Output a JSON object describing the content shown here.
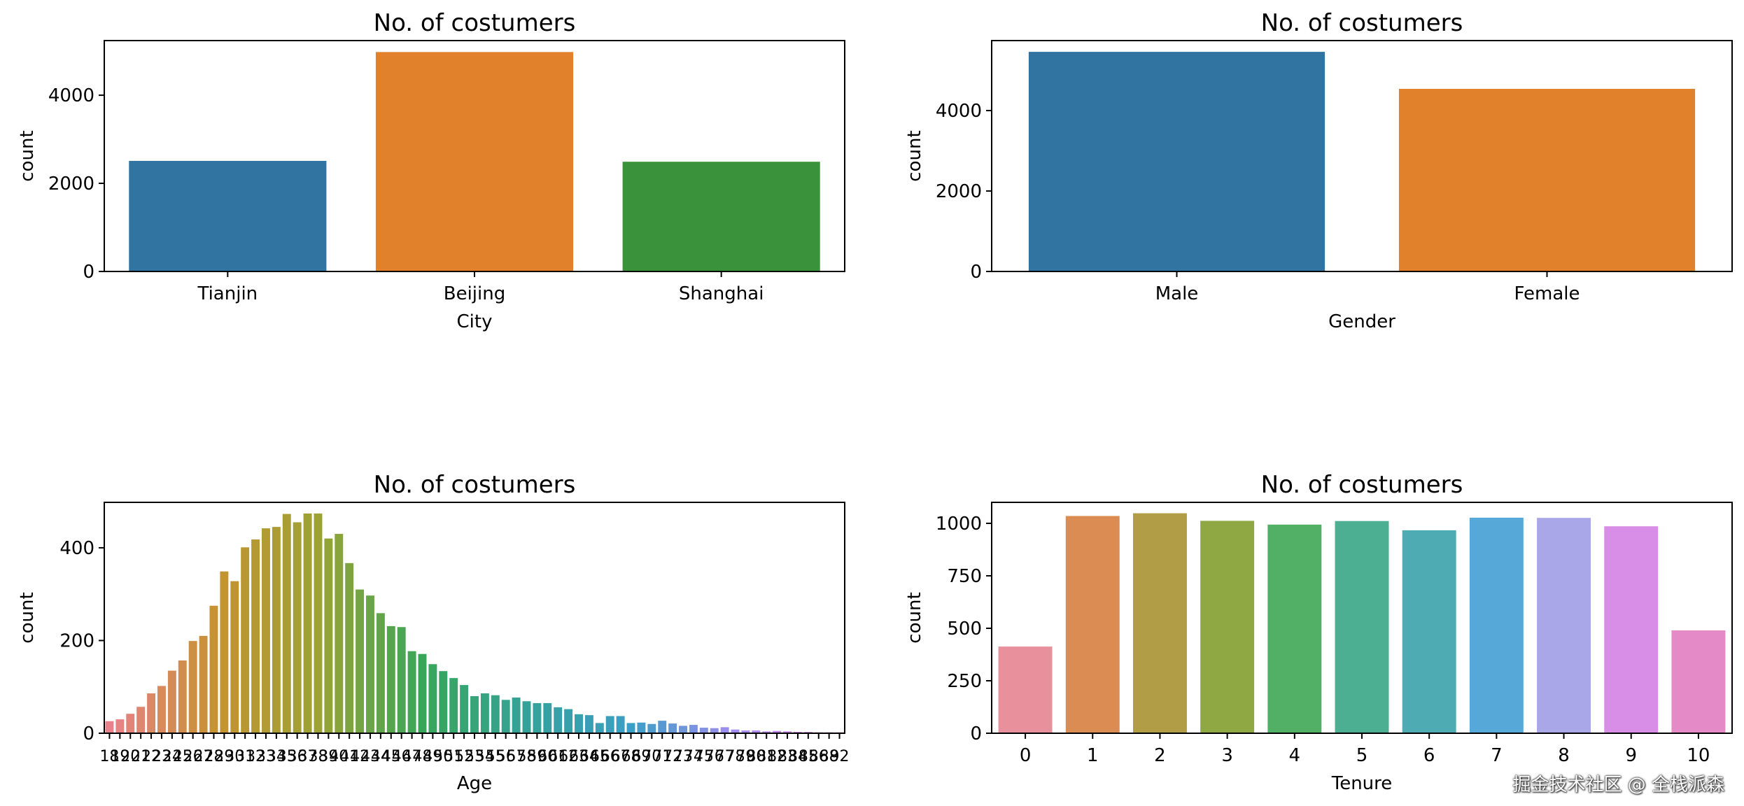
{
  "chart_data": [
    {
      "type": "bar",
      "title": "No. of costumers",
      "xlabel": "City",
      "ylabel": "count",
      "categories": [
        "Tianjin",
        "Beijing",
        "Shanghai"
      ],
      "values": [
        2510,
        4980,
        2490
      ],
      "colors": [
        "#3274a1",
        "#e1812c",
        "#3a923a"
      ],
      "yticks": [
        0,
        2000,
        4000
      ],
      "ylim": [
        0,
        5240
      ]
    },
    {
      "type": "bar",
      "title": "No. of costumers",
      "xlabel": "Gender",
      "ylabel": "count",
      "categories": [
        "Male",
        "Female"
      ],
      "values": [
        5460,
        4540
      ],
      "colors": [
        "#3274a1",
        "#e1812c"
      ],
      "yticks": [
        0,
        2000,
        4000
      ],
      "ylim": [
        0,
        5740
      ]
    },
    {
      "type": "bar",
      "title": "No. of costumers",
      "xlabel": "Age",
      "ylabel": "count",
      "categories": [
        "18",
        "19",
        "20",
        "21",
        "22",
        "23",
        "24",
        "25",
        "26",
        "27",
        "28",
        "29",
        "30",
        "31",
        "32",
        "33",
        "34",
        "35",
        "36",
        "37",
        "38",
        "39",
        "40",
        "41",
        "42",
        "43",
        "44",
        "45",
        "46",
        "47",
        "48",
        "49",
        "50",
        "51",
        "52",
        "53",
        "54",
        "55",
        "56",
        "57",
        "58",
        "59",
        "60",
        "61",
        "62",
        "63",
        "64",
        "65",
        "66",
        "67",
        "68",
        "69",
        "70",
        "71",
        "72",
        "73",
        "74",
        "75",
        "76",
        "77",
        "78",
        "79",
        "80",
        "81",
        "82",
        "83",
        "84",
        "85",
        "86",
        "88",
        "92"
      ],
      "values": [
        26,
        30,
        42,
        57,
        86,
        102,
        135,
        157,
        199,
        210,
        275,
        349,
        328,
        401,
        418,
        442,
        445,
        473,
        455,
        474,
        474,
        420,
        430,
        367,
        310,
        297,
        259,
        231,
        229,
        177,
        171,
        149,
        134,
        119,
        104,
        80,
        86,
        82,
        72,
        77,
        69,
        65,
        65,
        56,
        52,
        41,
        39,
        22,
        37,
        37,
        22,
        23,
        20,
        27,
        21,
        16,
        18,
        12,
        11,
        13,
        8,
        6,
        6,
        4,
        5,
        4,
        3,
        3,
        2,
        2,
        2
      ],
      "palette": [
        "#e9818c",
        "#c69232",
        "#9ca334",
        "#38a659",
        "#35a299",
        "#3a9fc6",
        "#a38cf0",
        "#e47bd6"
      ],
      "yticks": [
        0,
        200,
        400
      ],
      "ylim": [
        0,
        498
      ]
    },
    {
      "type": "bar",
      "title": "No. of costumers",
      "xlabel": "Tenure",
      "ylabel": "count",
      "categories": [
        "0",
        "1",
        "2",
        "3",
        "4",
        "5",
        "6",
        "7",
        "8",
        "9",
        "10"
      ],
      "values": [
        413,
        1035,
        1048,
        1012,
        994,
        1011,
        967,
        1027,
        1026,
        986,
        490
      ],
      "colors": [
        "#e8909c",
        "#da8c53",
        "#b09d45",
        "#8fa843",
        "#51b066",
        "#4caf92",
        "#4eabb4",
        "#55a8d8",
        "#a9a7e8",
        "#d88ee6",
        "#e48ac7"
      ],
      "yticks": [
        0,
        250,
        500,
        750,
        1000
      ],
      "ylim": [
        0,
        1100
      ]
    }
  ],
  "watermark": "掘金技术社区 @ 全栈派森"
}
